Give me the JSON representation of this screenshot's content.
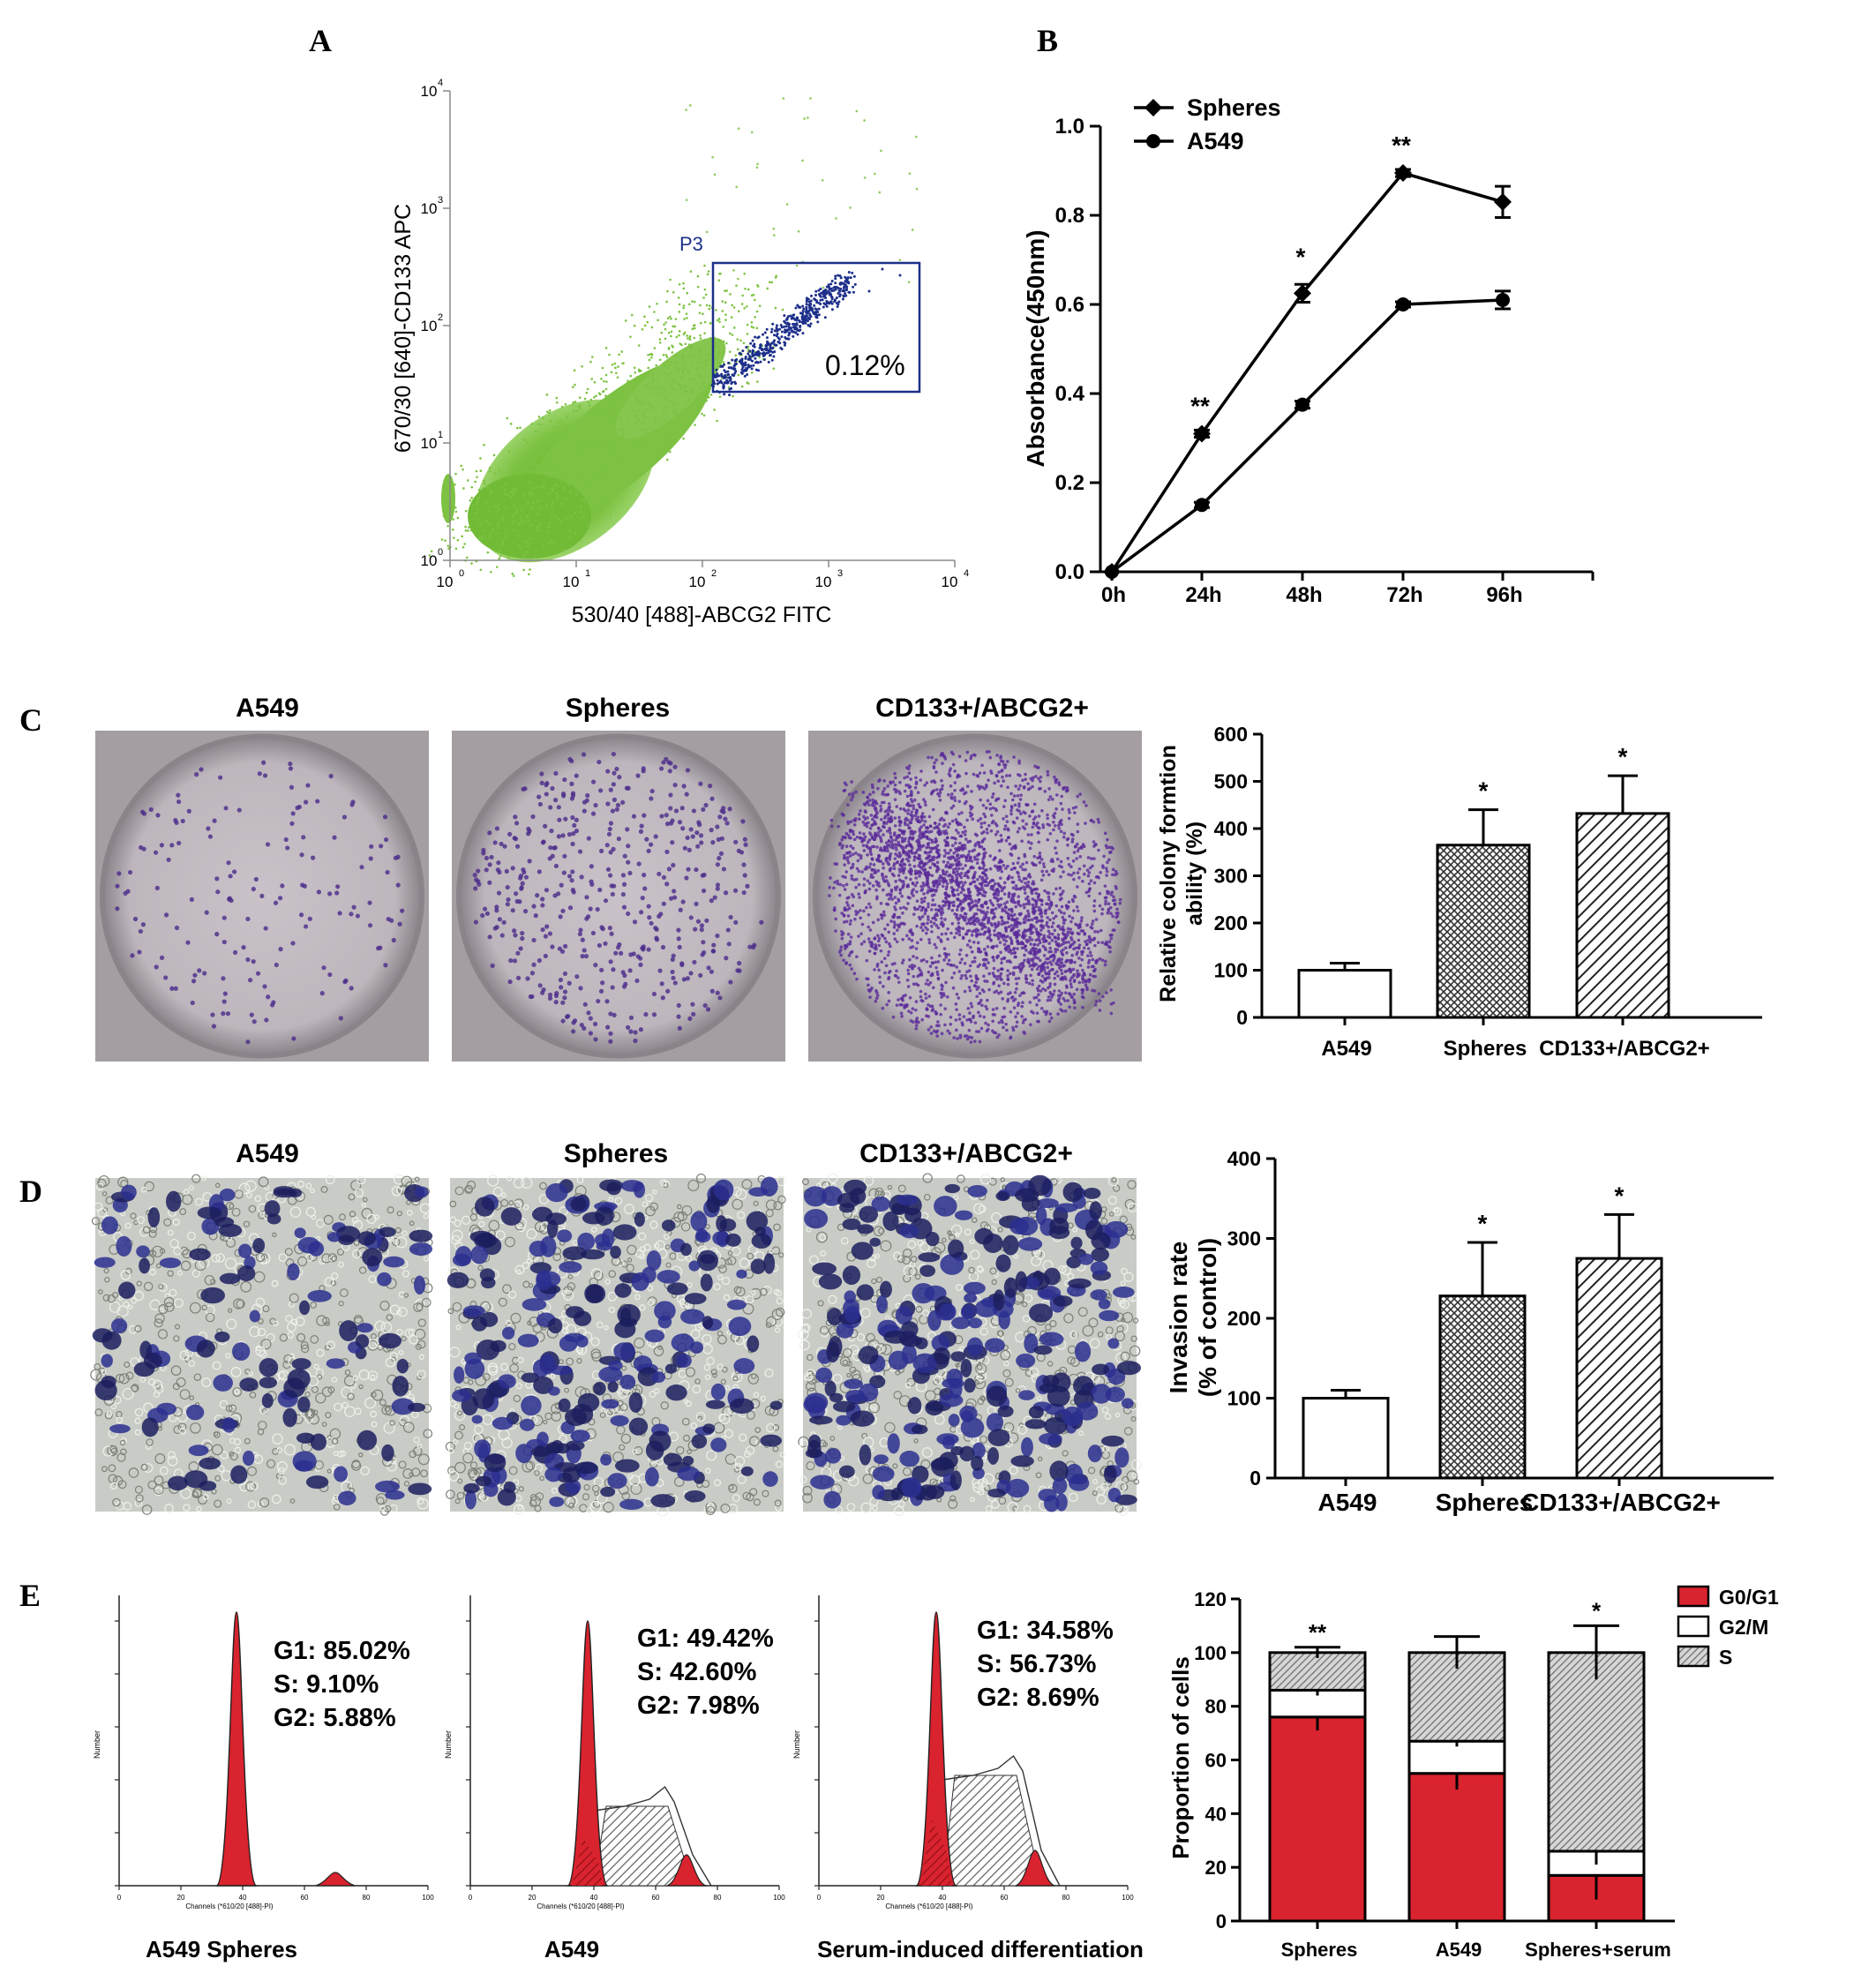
{
  "panels": {
    "A": "A",
    "B": "B",
    "C": "C",
    "D": "D",
    "E": "E"
  },
  "colors": {
    "scatter_green": "#7dc242",
    "gate_blue": "#1d2f8a",
    "red": "#d9232e",
    "hatch": "#555555"
  },
  "chart_data": [
    {
      "id": "A",
      "type": "scatter",
      "xlabel": "530/40 [488]-ABCG2 FITC",
      "ylabel": "670/30 [640]-CD133 APC",
      "x_scale": "log",
      "y_scale": "log",
      "xlim": [
        1,
        10000
      ],
      "ylim": [
        1,
        10000
      ],
      "xticks": [
        "10",
        "10",
        "10",
        "10",
        "10"
      ],
      "xtick_exp": [
        "0",
        "1",
        "2",
        "3",
        "4"
      ],
      "yticks": [
        "10",
        "10",
        "10",
        "10",
        "10"
      ],
      "ytick_exp": [
        "0",
        "1",
        "2",
        "3",
        "4"
      ],
      "gate": {
        "name": "P3",
        "x_range": [
          130,
          5000
        ],
        "y_range": [
          30,
          400
        ],
        "percent": "0.12%"
      }
    },
    {
      "id": "B",
      "type": "line",
      "categories": [
        "0h",
        "24h",
        "48h",
        "72h",
        "96h"
      ],
      "ylabel": "Absorbance(450nm)",
      "ylim": [
        0.0,
        1.0
      ],
      "yticks": [
        "0.0",
        "0.2",
        "0.4",
        "0.6",
        "0.8",
        "1.0"
      ],
      "series": [
        {
          "name": "Spheres",
          "marker": "diamond",
          "values": [
            0.0,
            0.31,
            0.625,
            0.895,
            0.83
          ],
          "errors": [
            0,
            0.008,
            0.02,
            0.008,
            0.035
          ]
        },
        {
          "name": "A549",
          "marker": "circle",
          "values": [
            0.0,
            0.15,
            0.375,
            0.6,
            0.61
          ],
          "errors": [
            0,
            0.006,
            0.008,
            0.006,
            0.02
          ]
        }
      ],
      "annotations": [
        {
          "x": "24h",
          "text": "**"
        },
        {
          "x": "48h",
          "text": "*"
        },
        {
          "x": "72h",
          "text": "**"
        }
      ],
      "legend_position": "top-left"
    },
    {
      "id": "C",
      "type": "bar",
      "image_titles": [
        "A549",
        "Spheres",
        "CD133+/ABCG2+"
      ],
      "categories": [
        "A549",
        "Spheres",
        "CD133+/ABCG2+"
      ],
      "values": [
        100,
        365,
        432
      ],
      "errors": [
        15,
        75,
        80
      ],
      "sig": [
        "",
        "*",
        "*"
      ],
      "ylabel_lines": [
        "Relative colony formtion",
        "ability (%)"
      ],
      "ylim": [
        0,
        600
      ],
      "yticks": [
        "0",
        "100",
        "200",
        "300",
        "400",
        "500",
        "600"
      ]
    },
    {
      "id": "D",
      "type": "bar",
      "image_titles": [
        "A549",
        "Spheres",
        "CD133+/ABCG2+"
      ],
      "categories": [
        "A549",
        "Spheres",
        "CD133+/ABCG2+"
      ],
      "values": [
        100,
        228,
        275
      ],
      "errors": [
        10,
        67,
        55
      ],
      "sig": [
        "",
        "*",
        "*"
      ],
      "ylabel_lines": [
        "Invasion rate",
        "(% of control)"
      ],
      "ylim": [
        0,
        400
      ],
      "yticks": [
        "0",
        "100",
        "200",
        "300",
        "400"
      ]
    },
    {
      "id": "E-hist",
      "type": "area",
      "histograms": [
        {
          "caption": "A549 Spheres",
          "stats": [
            "G1: 85.02%",
            "S: 9.10%",
            "G2: 5.88%"
          ]
        },
        {
          "caption": "A549",
          "stats": [
            "G1: 49.42%",
            "S: 42.60%",
            "G2: 7.98%"
          ]
        },
        {
          "caption": "Serum-induced differentiation",
          "stats": [
            "G1: 34.58%",
            "S: 56.73%",
            "G2: 8.69%"
          ]
        }
      ],
      "ylabel": "Number",
      "xlabel": "Channels (*610/20 [488]-PI)",
      "xticks": [
        "0",
        "20",
        "40",
        "60",
        "80",
        "100"
      ]
    },
    {
      "id": "E-bar",
      "type": "bar",
      "stacked": true,
      "categories": [
        "Spheres",
        "A549",
        "Spheres+serum"
      ],
      "series": [
        {
          "name": "G0/G1",
          "values": [
            76,
            55,
            17
          ],
          "errors": [
            5,
            6,
            9
          ]
        },
        {
          "name": "G2/M",
          "values": [
            10,
            12,
            9
          ],
          "errors": [
            2,
            2,
            5
          ]
        },
        {
          "name": "S",
          "values": [
            14,
            33,
            74
          ],
          "errors": [
            2,
            6,
            10
          ]
        }
      ],
      "sig": [
        "**",
        "",
        "*"
      ],
      "ylabel": "Proportion of cells",
      "ylim": [
        0,
        120
      ],
      "yticks": [
        "0",
        "20",
        "40",
        "60",
        "80",
        "100",
        "120"
      ],
      "legend_position": "top-right"
    }
  ]
}
